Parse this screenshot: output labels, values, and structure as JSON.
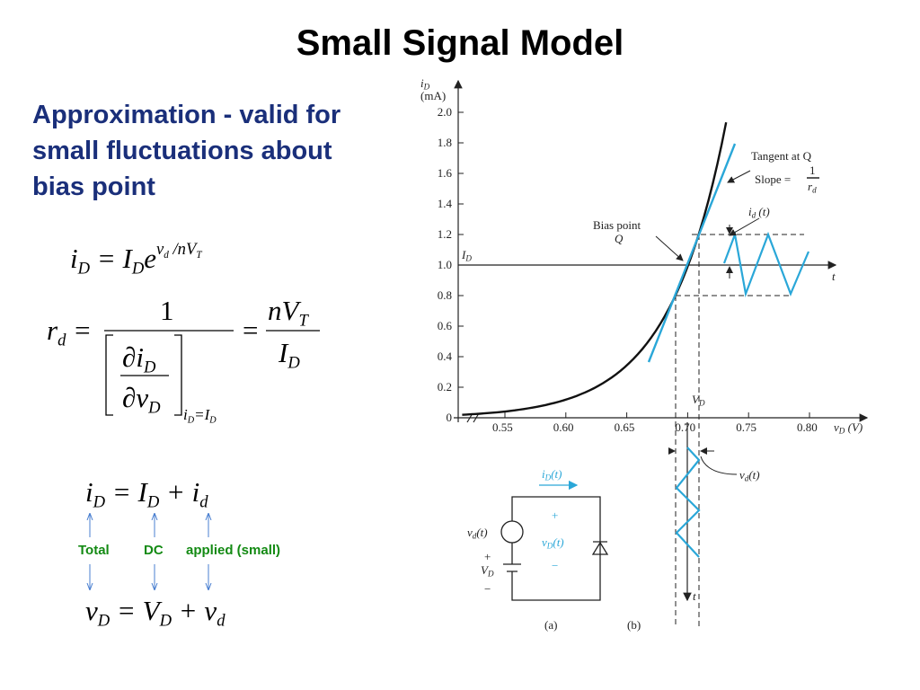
{
  "title": "Small Signal Model",
  "intro": [
    "Approximation - valid for",
    "small fluctuations about",
    "bias point"
  ],
  "equations": {
    "diode": [
      {
        "t": "i",
        "sub": "D"
      },
      {
        "t": " = "
      },
      {
        "t": "I",
        "sub": "D"
      },
      {
        "t": "e",
        "sup": [
          {
            "t": "v",
            "sub": "d"
          },
          {
            "t": " /nV",
            "sub": "T"
          }
        ]
      }
    ],
    "rd_lhs": [
      {
        "t": "r",
        "sub": "d"
      },
      {
        "t": " ="
      }
    ],
    "rd_num": "1",
    "rd_den_top": [
      {
        "t": "∂i",
        "sub": "D"
      }
    ],
    "rd_den_bottom": [
      {
        "t": "∂v",
        "sub": "D"
      }
    ],
    "rd_eval": [
      {
        "t": "i",
        "sub": "D"
      },
      {
        "t": "=I",
        "sub": "D"
      }
    ],
    "rd_eq": "=",
    "rd_rhs_top": [
      {
        "t": "nV",
        "sub": "T"
      }
    ],
    "rd_rhs_bottom": [
      {
        "t": "I",
        "sub": "D"
      }
    ],
    "current_sum": [
      {
        "t": "i",
        "sub": "D"
      },
      {
        "t": " = "
      },
      {
        "t": "I",
        "sub": "D"
      },
      {
        "t": " + "
      },
      {
        "t": "i",
        "sub": "d"
      }
    ],
    "labels": [
      "Total",
      "DC",
      "applied (small)"
    ],
    "voltage_sum": [
      {
        "t": "v",
        "sub": "D"
      },
      {
        "t": " = "
      },
      {
        "t": "V",
        "sub": "D"
      },
      {
        "t": " + "
      },
      {
        "t": "v",
        "sub": "d"
      }
    ]
  },
  "figure": {
    "y_axis_label": [
      {
        "t": "i",
        "sub": "D"
      }
    ],
    "y_axis_unit": "(mA)",
    "y_ticks": [
      "0",
      "0.2",
      "0.4",
      "0.6",
      "0.8",
      "1.0",
      "1.2",
      "1.4",
      "1.6",
      "1.8",
      "2.0"
    ],
    "x_ticks": [
      "0.55",
      "0.60",
      "0.65",
      "0.70",
      "0.75",
      "0.80"
    ],
    "x_axis_label": [
      {
        "t": "v",
        "sub": "D"
      },
      {
        "t": " (V)"
      }
    ],
    "tangent": "Tangent at Q",
    "slope": "Slope =",
    "slope_num": "1",
    "slope_den": [
      {
        "t": "r",
        "sub": "d"
      }
    ],
    "bias_point": "Bias point",
    "q": "Q",
    "id_t": [
      {
        "t": "i",
        "sub": "d"
      },
      {
        "t": " (t)"
      }
    ],
    "I_D": [
      {
        "t": "I",
        "sub": "D"
      }
    ],
    "t_right": "t",
    "V_D": [
      {
        "t": "V",
        "sub": "D"
      }
    ],
    "vd_t": [
      {
        "t": "v",
        "sub": "d"
      },
      {
        "t": "(t)"
      }
    ],
    "t_bottom": "t",
    "circuit": {
      "iD_t": [
        {
          "t": "i",
          "sub": "D"
        },
        {
          "t": "(t)"
        }
      ],
      "vd_t": [
        {
          "t": "v",
          "sub": "d"
        },
        {
          "t": "(t)"
        }
      ],
      "plus_top": "+",
      "vD_t": [
        {
          "t": "v",
          "sub": "D"
        },
        {
          "t": "(t)"
        }
      ],
      "minus_top": "−",
      "plus_bottom": "+",
      "VD": [
        {
          "t": "V",
          "sub": "D"
        }
      ],
      "minus_bottom": "−"
    },
    "caption_a": "(a)",
    "caption_b": "(b)"
  }
}
